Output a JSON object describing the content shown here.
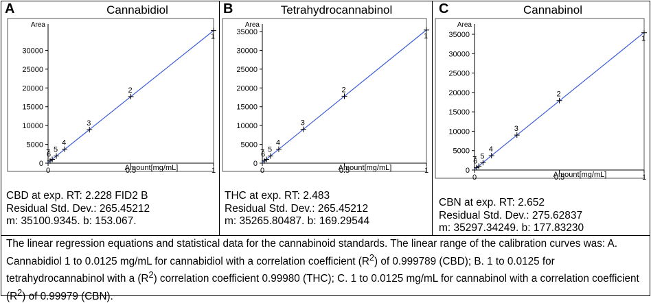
{
  "panels": [
    {
      "letter": "A",
      "title": "Cannabidiol",
      "stats": [
        "CBD at exp. RT: 2.228 FID2 B",
        "Residual Std. Dev.: 265.45212",
        "m: 35100.9345. b: 153.067."
      ]
    },
    {
      "letter": "B",
      "title": "Tetrahydrocannabinol",
      "stats": [
        "THC at exp. RT: 2.483",
        "Residual Std. Dev.: 265.45212",
        "m: 35265.80487. b: 169.29544"
      ]
    },
    {
      "letter": "C",
      "title": "Cannabinol",
      "stats": [
        "CBN at exp. RT: 2.652",
        "Residual Std. Dev.: 275.62837",
        "m: 35297.34249. b: 177.83230"
      ]
    }
  ],
  "caption_parts": [
    "The linear regression equations and statistical data for the cannabinoid standards. The linear range of the calibration curves was: A. Cannabidiol 1 to 0.0125 mg/mL for cannabidiol with a correlation coefficient (R",
    "2",
    ")  of 0.999789 (CBD); B. 1 to 0.0125 for tetrahydrocannabinol with a (R",
    "2",
    ") correlation coefficient 0.99980 (THC); C. 1 to 0.0125 mg/mL for cannabinol with a correlation coefficient (R",
    "2",
    ")  of 0.99979 (CBN)."
  ],
  "colors": {
    "fit_line": "#3b5bd6",
    "axis": "#000000",
    "frame": "#000000"
  },
  "chart_data": [
    {
      "type": "scatter",
      "title": "Cannabidiol",
      "xlabel": "Amount[mg/mL]",
      "ylabel": "Area",
      "xlim": [
        0,
        1
      ],
      "ylim": [
        0,
        37000
      ],
      "xticks": [
        "0",
        "0.5",
        "1"
      ],
      "xtick_values": [
        0,
        0.5,
        1
      ],
      "yticks": [
        "0",
        "5000",
        "10000",
        "15000",
        "20000",
        "25000",
        "30000"
      ],
      "ytick_values": [
        0,
        5000,
        10000,
        15000,
        20000,
        25000,
        30000
      ],
      "points": [
        {
          "label": "1",
          "x": 1.0,
          "y": 35250
        },
        {
          "label": "2",
          "x": 0.5,
          "y": 17700
        },
        {
          "label": "3",
          "x": 0.25,
          "y": 8900
        },
        {
          "label": "4",
          "x": 0.1,
          "y": 3700
        },
        {
          "label": "5",
          "x": 0.05,
          "y": 1900
        },
        {
          "label": "6",
          "x": 0.025,
          "y": 1000
        },
        {
          "label": "7",
          "x": 0.0125,
          "y": 600
        }
      ],
      "fit": {
        "slope": 35100.9345,
        "intercept": 153.067
      }
    },
    {
      "type": "scatter",
      "title": "Tetrahydrocannabinol",
      "xlabel": "Amount[mg/mL]",
      "ylabel": "Area",
      "xlim": [
        0,
        1
      ],
      "ylim": [
        0,
        37000
      ],
      "xticks": [
        "0",
        "0.5",
        "1"
      ],
      "xtick_values": [
        0,
        0.5,
        1
      ],
      "yticks": [
        "0",
        "5000",
        "10000",
        "15000",
        "20000",
        "25000",
        "30000",
        "35000"
      ],
      "ytick_values": [
        0,
        5000,
        10000,
        15000,
        20000,
        25000,
        30000,
        35000
      ],
      "points": [
        {
          "label": "1",
          "x": 1.0,
          "y": 35400
        },
        {
          "label": "2",
          "x": 0.5,
          "y": 17800
        },
        {
          "label": "3",
          "x": 0.25,
          "y": 9000
        },
        {
          "label": "4",
          "x": 0.1,
          "y": 3700
        },
        {
          "label": "5",
          "x": 0.05,
          "y": 1900
        },
        {
          "label": "6",
          "x": 0.025,
          "y": 1000
        },
        {
          "label": "7",
          "x": 0.0125,
          "y": 600
        }
      ],
      "fit": {
        "slope": 35265.80487,
        "intercept": 169.29544
      }
    },
    {
      "type": "scatter",
      "title": "Cannabinol",
      "xlabel": "Amount[mg/mL]",
      "ylabel": "Area",
      "xlim": [
        0,
        1
      ],
      "ylim": [
        0,
        37000
      ],
      "xticks": [
        "0",
        "0.5",
        "1"
      ],
      "xtick_values": [
        0,
        0.5,
        1
      ],
      "yticks": [
        "0",
        "5000",
        "10000",
        "15000",
        "20000",
        "25000",
        "30000",
        "35000"
      ],
      "ytick_values": [
        0,
        5000,
        10000,
        15000,
        20000,
        25000,
        30000,
        35000
      ],
      "points": [
        {
          "label": "1",
          "x": 1.0,
          "y": 35400
        },
        {
          "label": "2",
          "x": 0.5,
          "y": 17900
        },
        {
          "label": "3",
          "x": 0.25,
          "y": 9000
        },
        {
          "label": "4",
          "x": 0.1,
          "y": 3700
        },
        {
          "label": "5",
          "x": 0.05,
          "y": 1900
        },
        {
          "label": "6",
          "x": 0.025,
          "y": 1000
        },
        {
          "label": "7",
          "x": 0.0125,
          "y": 600
        }
      ],
      "fit": {
        "slope": 35297.34249,
        "intercept": 177.8323
      }
    }
  ]
}
